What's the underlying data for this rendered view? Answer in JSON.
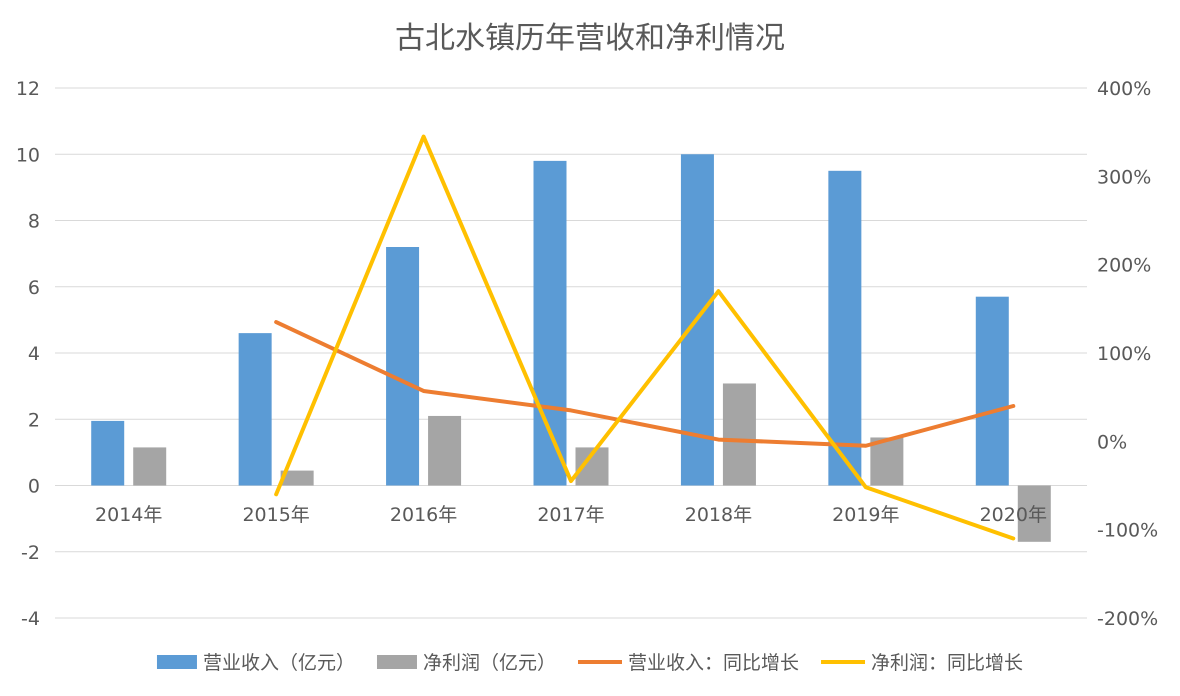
{
  "chart_data": {
    "type": "bar",
    "title": "古北水镇历年营收和净利情况",
    "categories": [
      "2014年",
      "2015年",
      "2016年",
      "2017年",
      "2018年",
      "2019年",
      "2020年"
    ],
    "y_left": {
      "ticks": [
        "12",
        "10",
        "8",
        "6",
        "4",
        "2",
        "0",
        "-2",
        "-4"
      ],
      "ylim": [
        -4,
        12
      ]
    },
    "y_right": {
      "ticks": [
        "400%",
        "300%",
        "200%",
        "100%",
        "0%",
        "-100%",
        "-200%"
      ],
      "ylim": [
        -2,
        4
      ],
      "format": "percent"
    },
    "grid": true,
    "legend_position": "bottom",
    "series": [
      {
        "name": "营业收入（亿元）",
        "type": "bar",
        "axis": "left",
        "color": "#5b9bd5",
        "values": [
          1.95,
          4.6,
          7.2,
          9.8,
          10.0,
          9.5,
          5.7
        ]
      },
      {
        "name": "净利润（亿元）",
        "type": "bar",
        "axis": "left",
        "color": "#a5a5a5",
        "values": [
          1.15,
          0.45,
          2.1,
          1.15,
          3.08,
          1.45,
          -1.7
        ]
      },
      {
        "name": "营业收入：同比增长",
        "type": "line",
        "axis": "right",
        "color": "#ed7d31",
        "values": [
          null,
          1.35,
          0.57,
          0.35,
          0.02,
          -0.05,
          0.4
        ]
      },
      {
        "name": "净利润：同比增长",
        "type": "line",
        "axis": "right",
        "color": "#ffc000",
        "values": [
          null,
          -0.6,
          3.45,
          -0.45,
          1.7,
          -0.52,
          -1.1
        ]
      }
    ]
  }
}
